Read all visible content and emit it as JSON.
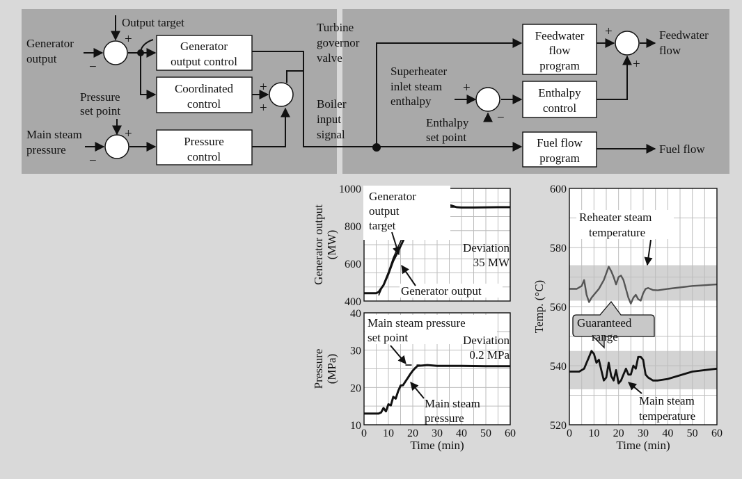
{
  "colors": {
    "page_bg": "#d9d9d9",
    "diagram_bg": "#a9a9a9",
    "plot_bg": "#ffffff",
    "band": "#d3d3d3",
    "reheater_line": "#555555",
    "line": "#111111"
  },
  "diagram": {
    "inputs": {
      "generator_output": [
        "Generator",
        "output"
      ],
      "output_target": "Output target",
      "pressure_set_point": [
        "Pressure",
        "set point"
      ],
      "main_steam_pressure": [
        "Main steam",
        "pressure"
      ],
      "turbine_governor_valve": [
        "Turbine",
        "governor",
        "valve"
      ],
      "boiler_input_signal": [
        "Boiler",
        "input",
        "signal"
      ],
      "superheater_inlet_steam_enthalpy": [
        "Superheater",
        "inlet steam",
        "enthalpy"
      ],
      "enthalpy_set_point": [
        "Enthalpy",
        "set point"
      ]
    },
    "blocks": {
      "generator_output_control": [
        "Generator",
        "output control"
      ],
      "coordinated_control": [
        "Coordinated",
        "control"
      ],
      "pressure_control": [
        "Pressure",
        "control"
      ],
      "feedwater_flow_program": [
        "Feedwater",
        "flow",
        "program"
      ],
      "enthalpy_control": [
        "Enthalpy",
        "control"
      ],
      "fuel_flow_program": [
        "Fuel flow",
        "program"
      ]
    },
    "outputs": {
      "feedwater_flow": [
        "Feedwater",
        "flow"
      ],
      "fuel_flow": "Fuel flow"
    },
    "signs": {
      "plus": "+",
      "minus": "−"
    }
  },
  "chart_data": [
    {
      "type": "line",
      "panel": "generator-output",
      "ylabel": [
        "Generator output",
        "(MW)"
      ],
      "xlim": [
        0,
        60
      ],
      "ylim": [
        400,
        1000
      ],
      "yticks": [
        "1000",
        "800",
        "600",
        "400"
      ],
      "grid": true,
      "series": [
        {
          "name": "Generator output",
          "x": [
            0,
            5,
            6,
            8,
            10,
            12,
            14,
            16,
            20,
            22,
            24,
            26,
            28,
            30,
            32,
            34,
            36,
            38,
            40,
            45,
            50,
            55,
            60
          ],
          "y": [
            442,
            442,
            448,
            485,
            545,
            615,
            665,
            720,
            860,
            900,
            900,
            902,
            905,
            910,
            915,
            914,
            908,
            900,
            898,
            898,
            899,
            900,
            900
          ]
        },
        {
          "name": "Generator output target",
          "x": [
            6,
            8,
            10,
            12,
            14,
            16,
            18,
            20,
            22,
            24,
            26,
            28,
            30,
            40,
            50,
            60
          ],
          "y": [
            430,
            490,
            555,
            630,
            690,
            745,
            800,
            850,
            890,
            900,
            900,
            900,
            900,
            900,
            900,
            900
          ]
        }
      ],
      "annotations": [
        "Generator",
        "output",
        "target",
        "Deviation",
        "35 MW",
        "Generator output"
      ]
    },
    {
      "type": "line",
      "panel": "pressure",
      "ylabel": [
        "Pressure",
        "(MPa)"
      ],
      "xlabel": "Time (min)",
      "xlim": [
        0,
        60
      ],
      "ylim": [
        10,
        40
      ],
      "xticks": [
        "0",
        "10",
        "20",
        "30",
        "40",
        "50",
        "60"
      ],
      "yticks": [
        "40",
        "30",
        "20",
        "10"
      ],
      "grid": true,
      "series": [
        {
          "name": "Main steam pressure",
          "x": [
            0,
            6,
            7,
            8,
            9,
            10,
            11,
            12,
            13,
            14,
            15,
            16,
            17,
            18,
            19,
            20,
            21,
            22,
            24,
            26,
            30,
            40,
            50,
            60
          ],
          "y": [
            13,
            13,
            13.3,
            14.5,
            13.6,
            15.5,
            15.2,
            17.5,
            17,
            19,
            20.5,
            20.6,
            21.6,
            22.6,
            23.6,
            24.5,
            25.2,
            25.8,
            25.9,
            26,
            25.8,
            25.8,
            25.7,
            25.7
          ]
        },
        {
          "name": "Main steam pressure set point",
          "x": [
            17,
            23
          ],
          "y": [
            26,
            26
          ]
        }
      ],
      "annotations": [
        "Main steam pressure",
        "set point",
        "Deviation",
        "0.2 MPa",
        "Main steam",
        "pressure"
      ]
    },
    {
      "type": "line",
      "panel": "temperature",
      "ylabel": "Temp. (°C)",
      "xlabel": "Time (min)",
      "xlim": [
        0,
        60
      ],
      "ylim": [
        520,
        600
      ],
      "xticks": [
        "0",
        "10",
        "20",
        "30",
        "40",
        "50",
        "60"
      ],
      "yticks": [
        "600",
        "580",
        "560",
        "540",
        "520"
      ],
      "grid": true,
      "bands": [
        [
          562,
          574
        ],
        [
          532,
          545
        ]
      ],
      "series": [
        {
          "name": "Reheater steam temperature",
          "x": [
            0,
            3,
            5,
            6,
            7,
            8,
            9,
            10,
            12,
            14,
            16,
            17,
            18,
            19,
            20,
            21,
            22,
            24,
            25,
            26,
            27,
            28,
            29,
            30,
            31,
            32,
            34,
            36,
            40,
            50,
            60
          ],
          "y": [
            566,
            566,
            567,
            569,
            564,
            561.5,
            563,
            564,
            566,
            569,
            573.5,
            572,
            570,
            567.5,
            570,
            570.5,
            569,
            563,
            561,
            563,
            564,
            562.5,
            562,
            564.5,
            566,
            566.3,
            565.6,
            565.5,
            566,
            567,
            567.5
          ]
        },
        {
          "name": "Main steam temperature",
          "x": [
            0,
            4,
            6,
            7,
            8,
            9,
            10,
            11,
            12,
            13,
            14,
            15,
            16,
            17,
            18,
            19,
            20,
            21,
            22,
            23,
            24,
            25,
            26,
            27,
            28,
            29,
            30,
            31,
            32,
            34,
            36,
            40,
            50,
            60
          ],
          "y": [
            538,
            538,
            539,
            541,
            543,
            545,
            544,
            541,
            542,
            538.5,
            535,
            536,
            541,
            536.5,
            535,
            538.5,
            534,
            535,
            537,
            539,
            537,
            537,
            540,
            539,
            543,
            543,
            542,
            537,
            536,
            535,
            535,
            535.5,
            538,
            539
          ]
        }
      ],
      "annotations": [
        "Reheater steam",
        "temperature",
        "Guaranteed",
        "range",
        "Main steam",
        "temperature"
      ]
    }
  ]
}
